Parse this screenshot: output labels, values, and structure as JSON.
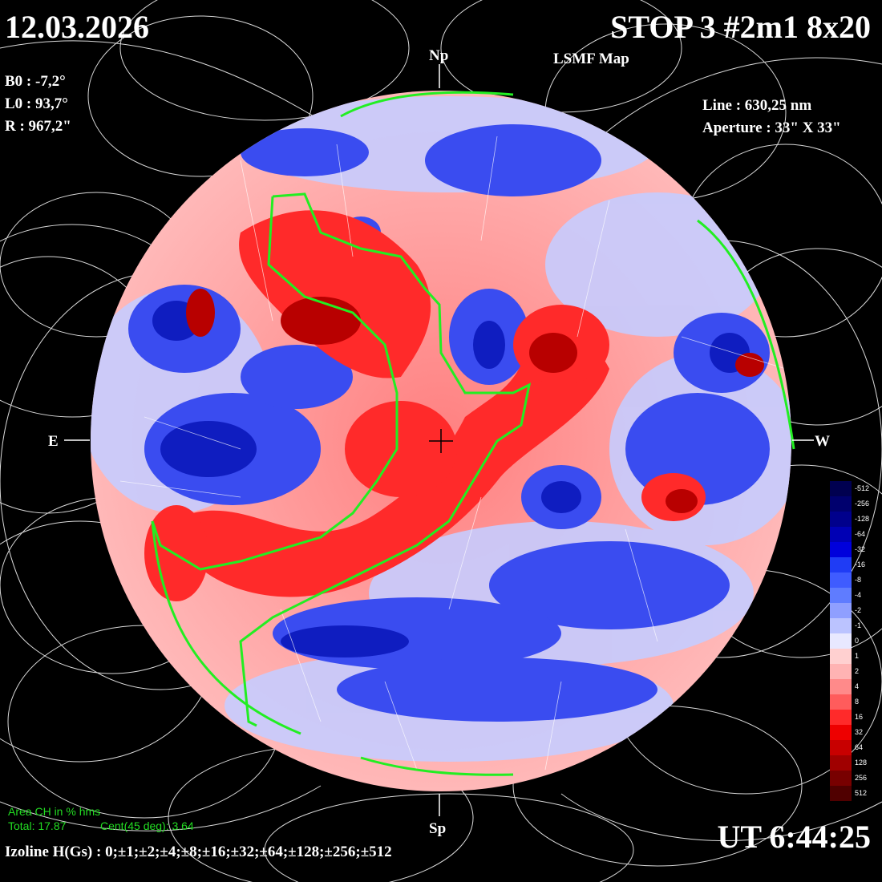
{
  "header": {
    "date": "12.03.2026",
    "title": "STOP 3 #2m1 8x20",
    "map_label": "LSMF  Map"
  },
  "params": {
    "b0": "B0 : -7,2°",
    "l0": "L0 : 93,7°",
    "r": "R  : 967,2\""
  },
  "instrument": {
    "line": "Line :  630,25 nm",
    "aperture": "Aperture : 33\" X 33\""
  },
  "compass": {
    "north": "Np",
    "south": "Sp",
    "east": "E",
    "west": "W"
  },
  "coronal_hole": {
    "heading": "Area CH in % hms",
    "total": "Total: 17.87",
    "central": "Cent(45 deg): 3.64"
  },
  "footer": {
    "izoline": "Izoline H(Gs) : 0;±1;±2;±4;±8;±16;±32;±64;±128;±256;±512",
    "time": "UT 6:44:25"
  },
  "colorbar": {
    "labels": [
      "-512",
      "-256",
      "-128",
      "-64",
      "-32",
      "-16",
      "-8",
      "-4",
      "-2",
      "-1",
      "0",
      "1",
      "2",
      "4",
      "8",
      "16",
      "32",
      "64",
      "128",
      "256",
      "512"
    ],
    "colors": [
      "#000050",
      "#00006e",
      "#00008c",
      "#0000b4",
      "#0000dc",
      "#1f3cf5",
      "#3f5cff",
      "#5f7cff",
      "#8f9fff",
      "#bbc3ff",
      "#e8e8ff",
      "#ffd0d0",
      "#ffb3b3",
      "#ff8a8a",
      "#ff5c5c",
      "#ff2a2a",
      "#ee0000",
      "#c80000",
      "#a00000",
      "#780000",
      "#500000"
    ]
  }
}
